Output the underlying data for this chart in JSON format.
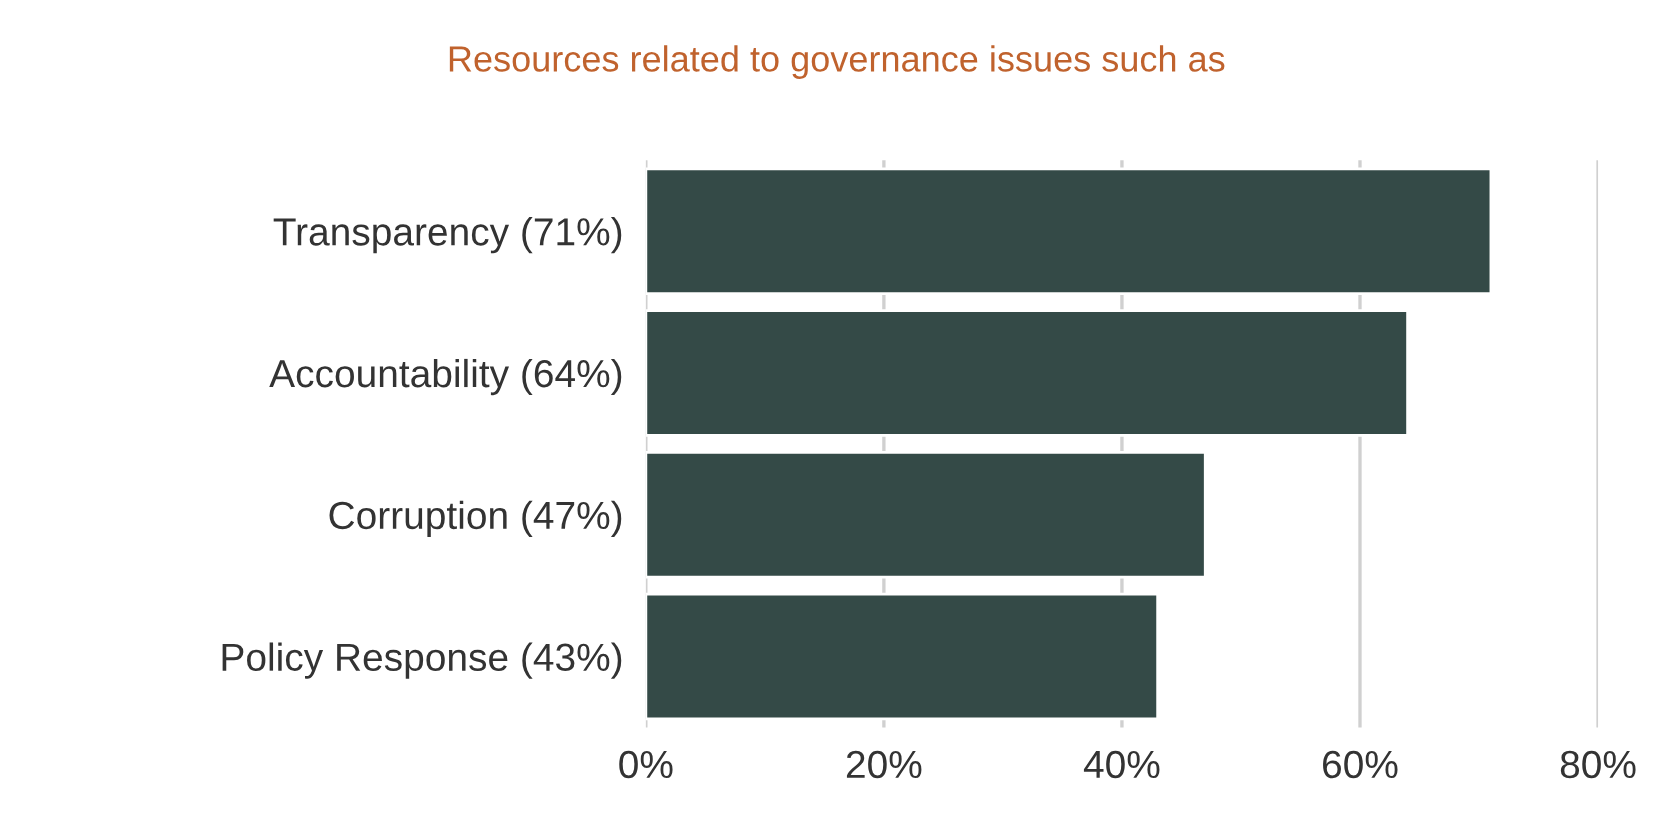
{
  "chart_data": {
    "type": "bar",
    "orientation": "horizontal",
    "title": "Resources related to governance issues such as",
    "categories": [
      "Transparency (71%)",
      "Accountability (64%)",
      "Corruption (47%)",
      "Policy Response (43%)"
    ],
    "values": [
      71,
      64,
      47,
      43
    ],
    "color": "#344a47",
    "xlim": [
      0,
      80
    ],
    "xticks": [
      {
        "value": 0,
        "label": "0%"
      },
      {
        "value": 20,
        "label": "20%"
      },
      {
        "value": 40,
        "label": "40%"
      },
      {
        "value": 60,
        "label": "60%"
      },
      {
        "value": 80,
        "label": "80%"
      }
    ],
    "grid": "x"
  }
}
